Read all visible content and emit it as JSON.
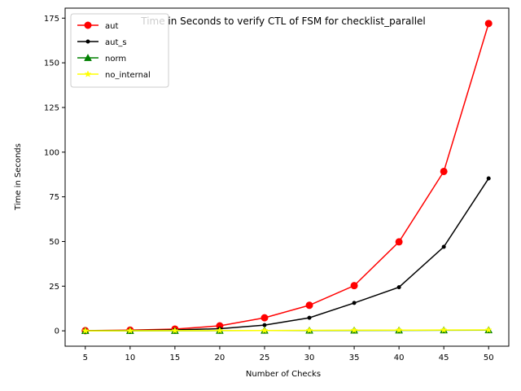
{
  "chart_data": {
    "type": "line",
    "title": "Time in Seconds to verify CTL of FSM for checklist_parallel",
    "xlabel": "Number of Checks",
    "ylabel": "Time in Seconds",
    "x": [
      5,
      10,
      15,
      20,
      25,
      30,
      35,
      40,
      45,
      50
    ],
    "xticks": [
      "5",
      "10",
      "15",
      "20",
      "25",
      "30",
      "35",
      "40",
      "45",
      "50"
    ],
    "yticks": [
      0,
      25,
      50,
      75,
      100,
      125,
      150,
      175
    ],
    "ylim": [
      -8.6,
      180.6
    ],
    "xlim": [
      2.75,
      52.25
    ],
    "grid": false,
    "legend_position": "top-left",
    "series": [
      {
        "name": "aut",
        "color": "#ff0000",
        "marker": "circle",
        "values": [
          0.1,
          0.4,
          1.0,
          2.8,
          7.3,
          14.3,
          25.3,
          49.8,
          89.2,
          172.0
        ]
      },
      {
        "name": "aut_s",
        "color": "#000000",
        "marker": "point",
        "values": [
          0.05,
          0.2,
          0.5,
          1.2,
          3.2,
          7.3,
          15.6,
          24.4,
          47.0,
          85.3
        ]
      },
      {
        "name": "norm",
        "color": "#008000",
        "marker": "triangle",
        "values": [
          0.0,
          0.0,
          0.05,
          0.1,
          0.15,
          0.2,
          0.25,
          0.3,
          0.35,
          0.4
        ]
      },
      {
        "name": "no_internal",
        "color": "#ffff00",
        "marker": "star",
        "values": [
          0.0,
          0.05,
          0.1,
          0.15,
          0.2,
          0.3,
          0.35,
          0.4,
          0.45,
          0.5
        ]
      }
    ]
  }
}
